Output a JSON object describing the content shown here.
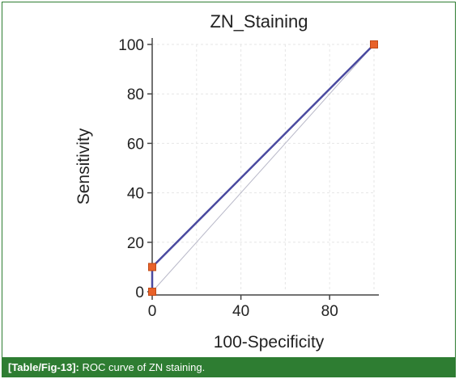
{
  "chart_data": {
    "type": "line",
    "title": "ZN_Staining",
    "xlabel": "100-Specificity",
    "ylabel": "Sensitivity",
    "xlim": [
      0,
      100
    ],
    "ylim": [
      0,
      100
    ],
    "x_ticks": [
      "0",
      "40",
      "80"
    ],
    "y_ticks": [
      "0",
      "20",
      "40",
      "60",
      "80",
      "100"
    ],
    "grid": true,
    "series": [
      {
        "x": [
          0,
          0,
          100
        ],
        "y": [
          0,
          10,
          100
        ],
        "color": "#4a4aa0",
        "marker_color": "#e8622a"
      }
    ],
    "reference_line": {
      "x": [
        0,
        100
      ],
      "y": [
        0,
        100
      ],
      "color": "#b8b8c8"
    }
  },
  "caption": {
    "label": "[Table/Fig-13]:",
    "text": "ROC curve of ZN staining."
  }
}
